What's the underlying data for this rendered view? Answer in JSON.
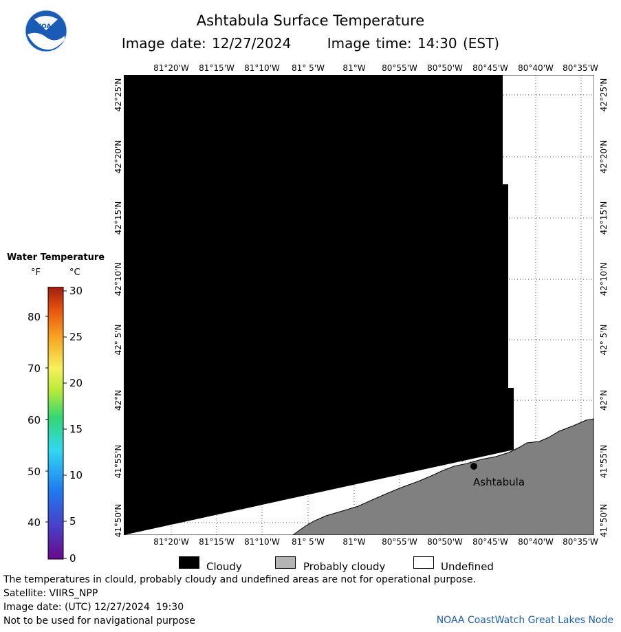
{
  "title": "Ashtabula Surface Temperature",
  "image_date_label": "Image date: 12/27/2024",
  "image_time_label": "Image time: 14:30 (EST)",
  "logo_text": "NOAA",
  "map": {
    "lon_ticks": [
      "81°20'W",
      "81°15'W",
      "81°10'W",
      "81° 5'W",
      "81°W",
      "80°55'W",
      "80°50'W",
      "80°45'W",
      "80°40'W",
      "80°35'W"
    ],
    "lat_ticks": [
      "42°25'N",
      "42°20'N",
      "42°15'N",
      "42°10'N",
      "42° 5'N",
      "42°N",
      "41°55'N",
      "41°50'N"
    ],
    "city_label": "Ashtabula"
  },
  "legend": {
    "title": "Water Temperature",
    "unit_f": "°F",
    "unit_c": "°C",
    "f_labels": [
      "80",
      "70",
      "60",
      "50",
      "40"
    ],
    "c_labels": [
      "30",
      "25",
      "20",
      "15",
      "10",
      "5",
      "0"
    ]
  },
  "key": {
    "cloudy": "Cloudy",
    "probably_cloudy": "Probably cloudy",
    "undefined": "Undefined",
    "colors": {
      "cloudy": "#000000",
      "probably_cloudy": "#b4b4b4",
      "undefined": "#ffffff",
      "land": "#808080"
    }
  },
  "notes": {
    "warning": "The temperatures in clould, probably cloudy and undefined areas are not for operational purpose.",
    "satellite": "Satellite: VIIRS_NPP",
    "utc_date": "Image date: (UTC) 12/27/2024  19:30",
    "navigation": "Not to be used for navigational purpose",
    "credit": "NOAA CoastWatch Great Lakes Node"
  }
}
